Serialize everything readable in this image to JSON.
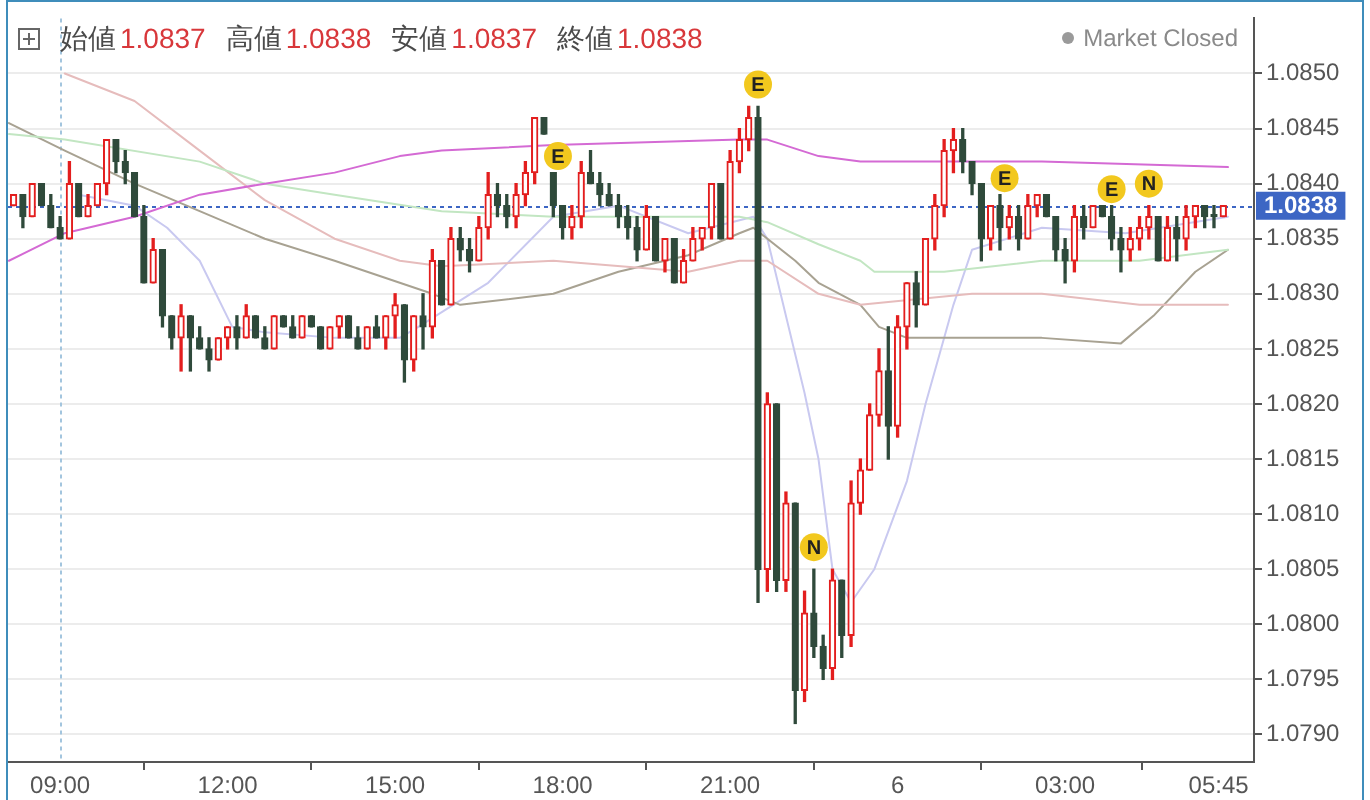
{
  "chart_data": {
    "type": "candlestick",
    "annotations": [
      "始値1.0837",
      "高値1.0838",
      "安値1.0837",
      "終値1.0838",
      "Market Closed",
      {
        "text": "E",
        "x": "--04-05T17:55",
        "y": 1.08425
      },
      {
        "text": "E",
        "x": "--04-05T21:30",
        "y": 1.0849
      },
      {
        "text": "N",
        "x": "--04-05T22:30",
        "y": 1.0807
      },
      {
        "text": "E",
        "x": "--04-06T01:55",
        "y": 1.08405
      },
      {
        "text": "E",
        "x": "--04-06T03:50",
        "y": 1.08395
      },
      {
        "text": "N",
        "x": "--04-06T04:30",
        "y": 1.084
      }
    ],
    "x": [
      "--04-05T08:10",
      "--04-05T08:20",
      "--04-05T08:30",
      "--04-05T08:40",
      "--04-05T08:50",
      "--04-05T09:00",
      "--04-05T09:10",
      "--04-05T09:20",
      "--04-05T09:30",
      "--04-05T09:40",
      "--04-05T09:50",
      "--04-05T10:00",
      "--04-05T10:10",
      "--04-05T10:20",
      "--04-05T10:30",
      "--04-05T10:40",
      "--04-05T10:50",
      "--04-05T11:00",
      "--04-05T11:10",
      "--04-05T11:20",
      "--04-05T11:30",
      "--04-05T11:40",
      "--04-05T11:50",
      "--04-05T12:00",
      "--04-05T12:10",
      "--04-05T12:20",
      "--04-05T12:30",
      "--04-05T12:40",
      "--04-05T12:50",
      "--04-05T13:00",
      "--04-05T13:10",
      "--04-05T13:20",
      "--04-05T13:30",
      "--04-05T13:40",
      "--04-05T13:50",
      "--04-05T14:00",
      "--04-05T14:10",
      "--04-05T14:20",
      "--04-05T14:30",
      "--04-05T14:40",
      "--04-05T14:50",
      "--04-05T15:00",
      "--04-05T15:10",
      "--04-05T15:20",
      "--04-05T15:30",
      "--04-05T15:40",
      "--04-05T15:50",
      "--04-05T16:00",
      "--04-05T16:10",
      "--04-05T16:20",
      "--04-05T16:30",
      "--04-05T16:40",
      "--04-05T16:50",
      "--04-05T17:00",
      "--04-05T17:10",
      "--04-05T17:20",
      "--04-05T17:30",
      "--04-05T17:40",
      "--04-05T17:50",
      "--04-05T18:00",
      "--04-05T18:10",
      "--04-05T18:20",
      "--04-05T18:30",
      "--04-05T18:40",
      "--04-05T18:50",
      "--04-05T19:00",
      "--04-05T19:10",
      "--04-05T19:20",
      "--04-05T19:30",
      "--04-05T19:40",
      "--04-05T19:50",
      "--04-05T20:00",
      "--04-05T20:10",
      "--04-05T20:20",
      "--04-05T20:30",
      "--04-05T20:40",
      "--04-05T20:50",
      "--04-05T21:00",
      "--04-05T21:10",
      "--04-05T21:20",
      "--04-05T21:30",
      "--04-05T21:40",
      "--04-05T21:50",
      "--04-05T22:00",
      "--04-05T22:10",
      "--04-05T22:20",
      "--04-05T22:30",
      "--04-05T22:40",
      "--04-05T22:50",
      "--04-05T23:00",
      "--04-05T23:10",
      "--04-05T23:20",
      "--04-05T23:30",
      "--04-05T23:40",
      "--04-05T23:50",
      "--04-06T00:00",
      "--04-06T00:10",
      "--04-06T00:20",
      "--04-06T00:30",
      "--04-06T00:40",
      "--04-06T00:50",
      "--04-06T01:00",
      "--04-06T01:10",
      "--04-06T01:20",
      "--04-06T01:30",
      "--04-06T01:40",
      "--04-06T01:50",
      "--04-06T02:00",
      "--04-06T02:10",
      "--04-06T02:20",
      "--04-06T02:30",
      "--04-06T02:40",
      "--04-06T02:50",
      "--04-06T03:00",
      "--04-06T03:10",
      "--04-06T03:20",
      "--04-06T03:30",
      "--04-06T03:40",
      "--04-06T03:50",
      "--04-06T04:00",
      "--04-06T04:10",
      "--04-06T04:20",
      "--04-06T04:30",
      "--04-06T04:40",
      "--04-06T04:50",
      "--04-06T05:00",
      "--04-06T05:10",
      "--04-06T05:20",
      "--04-06T05:30",
      "--04-06T05:40",
      "--04-06T05:50"
    ],
    "ohlc": [
      [
        1.0838,
        1.0839,
        1.0838,
        1.0839
      ],
      [
        1.0839,
        1.0839,
        1.0836,
        1.0837
      ],
      [
        1.0837,
        1.084,
        1.0837,
        1.084
      ],
      [
        1.084,
        1.084,
        1.0838,
        1.0838
      ],
      [
        1.0838,
        1.0839,
        1.0836,
        1.0836
      ],
      [
        1.0836,
        1.0837,
        1.0835,
        1.0835
      ],
      [
        1.0835,
        1.0842,
        1.0835,
        1.084
      ],
      [
        1.084,
        1.084,
        1.0837,
        1.0837
      ],
      [
        1.0837,
        1.0839,
        1.0837,
        1.0838
      ],
      [
        1.0838,
        1.084,
        1.0838,
        1.084
      ],
      [
        1.084,
        1.0844,
        1.0839,
        1.0844
      ],
      [
        1.0844,
        1.0844,
        1.0841,
        1.0842
      ],
      [
        1.0842,
        1.0843,
        1.084,
        1.0841
      ],
      [
        1.0841,
        1.0841,
        1.0837,
        1.0837
      ],
      [
        1.0837,
        1.0838,
        1.0831,
        1.0831
      ],
      [
        1.0831,
        1.0835,
        1.0831,
        1.0834
      ],
      [
        1.0834,
        1.0834,
        1.0827,
        1.0828
      ],
      [
        1.0828,
        1.0828,
        1.0825,
        1.0826
      ],
      [
        1.0826,
        1.0829,
        1.0823,
        1.0828
      ],
      [
        1.0828,
        1.0828,
        1.0823,
        1.0826
      ],
      [
        1.0826,
        1.0827,
        1.0825,
        1.0825
      ],
      [
        1.0825,
        1.0826,
        1.0823,
        1.0824
      ],
      [
        1.0824,
        1.0826,
        1.0824,
        1.0826
      ],
      [
        1.0826,
        1.0827,
        1.0825,
        1.0827
      ],
      [
        1.0827,
        1.0828,
        1.0825,
        1.0826
      ],
      [
        1.0826,
        1.0829,
        1.0826,
        1.0828
      ],
      [
        1.0828,
        1.0828,
        1.0826,
        1.0826
      ],
      [
        1.0826,
        1.0827,
        1.0825,
        1.0825
      ],
      [
        1.0825,
        1.0828,
        1.0825,
        1.0828
      ],
      [
        1.0828,
        1.0828,
        1.0827,
        1.0827
      ],
      [
        1.0827,
        1.0828,
        1.0826,
        1.0826
      ],
      [
        1.0826,
        1.0828,
        1.0826,
        1.0828
      ],
      [
        1.0828,
        1.0828,
        1.0827,
        1.0827
      ],
      [
        1.0827,
        1.0827,
        1.0825,
        1.0825
      ],
      [
        1.0825,
        1.0827,
        1.0825,
        1.0827
      ],
      [
        1.0827,
        1.0828,
        1.0826,
        1.0828
      ],
      [
        1.0828,
        1.0828,
        1.0826,
        1.0826
      ],
      [
        1.0826,
        1.0827,
        1.0825,
        1.0825
      ],
      [
        1.0825,
        1.0827,
        1.0825,
        1.0827
      ],
      [
        1.0827,
        1.0828,
        1.0826,
        1.0826
      ],
      [
        1.0826,
        1.0828,
        1.0825,
        1.0828
      ],
      [
        1.0828,
        1.083,
        1.0826,
        1.0829
      ],
      [
        1.0829,
        1.0829,
        1.0822,
        1.0824
      ],
      [
        1.0824,
        1.0828,
        1.0823,
        1.0828
      ],
      [
        1.0828,
        1.083,
        1.0825,
        1.0827
      ],
      [
        1.0827,
        1.0834,
        1.0826,
        1.0833
      ],
      [
        1.0833,
        1.0833,
        1.0829,
        1.0829
      ],
      [
        1.0829,
        1.0836,
        1.0829,
        1.0835
      ],
      [
        1.0835,
        1.0836,
        1.0833,
        1.0834
      ],
      [
        1.0834,
        1.0835,
        1.0832,
        1.0833
      ],
      [
        1.0833,
        1.0837,
        1.0833,
        1.0836
      ],
      [
        1.0836,
        1.0841,
        1.0835,
        1.0839
      ],
      [
        1.0839,
        1.084,
        1.0837,
        1.0838
      ],
      [
        1.0838,
        1.0839,
        1.0836,
        1.0837
      ],
      [
        1.0837,
        1.084,
        1.0836,
        1.0839
      ],
      [
        1.0839,
        1.0842,
        1.0838,
        1.0841
      ],
      [
        1.0841,
        1.0846,
        1.084,
        1.0846
      ],
      [
        1.0846,
        1.0846,
        1.08445,
        1.08445
      ],
      [
        1.0841,
        1.0841,
        1.0837,
        1.0838
      ],
      [
        1.0838,
        1.0838,
        1.0835,
        1.0836
      ],
      [
        1.0836,
        1.0838,
        1.0835,
        1.0837
      ],
      [
        1.0837,
        1.0842,
        1.0836,
        1.0841
      ],
      [
        1.0841,
        1.0843,
        1.084,
        1.084
      ],
      [
        1.084,
        1.0841,
        1.0838,
        1.0839
      ],
      [
        1.0839,
        1.084,
        1.0838,
        1.0838
      ],
      [
        1.0838,
        1.0839,
        1.0836,
        1.0837
      ],
      [
        1.0837,
        1.0838,
        1.0835,
        1.0836
      ],
      [
        1.0836,
        1.0837,
        1.0833,
        1.0834
      ],
      [
        1.0834,
        1.0838,
        1.0834,
        1.0837
      ],
      [
        1.0837,
        1.0837,
        1.0833,
        1.0833
      ],
      [
        1.0833,
        1.0835,
        1.0832,
        1.0835
      ],
      [
        1.0835,
        1.0835,
        1.0831,
        1.0831
      ],
      [
        1.0831,
        1.0834,
        1.0831,
        1.0833
      ],
      [
        1.0833,
        1.0836,
        1.0833,
        1.0835
      ],
      [
        1.0835,
        1.0836,
        1.0834,
        1.0836
      ],
      [
        1.0836,
        1.084,
        1.0835,
        1.084
      ],
      [
        1.084,
        1.084,
        1.0835,
        1.0835
      ],
      [
        1.0835,
        1.0843,
        1.0835,
        1.0842
      ],
      [
        1.0842,
        1.0845,
        1.0841,
        1.0844
      ],
      [
        1.0844,
        1.0847,
        1.0843,
        1.0846
      ],
      [
        1.0846,
        1.0847,
        1.0802,
        1.0805
      ],
      [
        1.0805,
        1.0821,
        1.0803,
        1.082
      ],
      [
        1.082,
        1.082,
        1.0803,
        1.0804
      ],
      [
        1.0804,
        1.0812,
        1.0803,
        1.0811
      ],
      [
        1.0811,
        1.0811,
        1.0791,
        1.0794
      ],
      [
        1.0794,
        1.0803,
        1.0793,
        1.0801
      ],
      [
        1.0801,
        1.0805,
        1.0797,
        1.0798
      ],
      [
        1.0798,
        1.0799,
        1.0795,
        1.0796
      ],
      [
        1.0796,
        1.0805,
        1.0795,
        1.0804
      ],
      [
        1.0804,
        1.0804,
        1.0797,
        1.0799
      ],
      [
        1.0799,
        1.0813,
        1.0798,
        1.0811
      ],
      [
        1.0811,
        1.0815,
        1.081,
        1.0814
      ],
      [
        1.0814,
        1.082,
        1.0814,
        1.0819
      ],
      [
        1.0819,
        1.0825,
        1.0818,
        1.0823
      ],
      [
        1.0823,
        1.0827,
        1.0815,
        1.0818
      ],
      [
        1.0818,
        1.0828,
        1.0817,
        1.0827
      ],
      [
        1.0827,
        1.0831,
        1.0825,
        1.0831
      ],
      [
        1.0831,
        1.0832,
        1.0827,
        1.0829
      ],
      [
        1.0829,
        1.0835,
        1.0829,
        1.0835
      ],
      [
        1.0835,
        1.0839,
        1.0834,
        1.0838
      ],
      [
        1.0838,
        1.0844,
        1.0837,
        1.0843
      ],
      [
        1.0843,
        1.0845,
        1.0841,
        1.0844
      ],
      [
        1.0844,
        1.0845,
        1.0841,
        1.0842
      ],
      [
        1.0842,
        1.0842,
        1.0839,
        1.084
      ],
      [
        1.084,
        1.084,
        1.0833,
        1.0835
      ],
      [
        1.0835,
        1.0838,
        1.0834,
        1.0838
      ],
      [
        1.0838,
        1.0839,
        1.0834,
        1.0836
      ],
      [
        1.0836,
        1.0838,
        1.0835,
        1.0837
      ],
      [
        1.0837,
        1.0838,
        1.0834,
        1.0835
      ],
      [
        1.0835,
        1.0839,
        1.0835,
        1.0838
      ],
      [
        1.0838,
        1.0839,
        1.0837,
        1.0839
      ],
      [
        1.0839,
        1.0839,
        1.0837,
        1.0837
      ],
      [
        1.0837,
        1.0837,
        1.0833,
        1.0834
      ],
      [
        1.0834,
        1.0835,
        1.0831,
        1.0833
      ],
      [
        1.0833,
        1.0838,
        1.0832,
        1.0837
      ],
      [
        1.0837,
        1.0838,
        1.0835,
        1.0836
      ],
      [
        1.0836,
        1.0838,
        1.0836,
        1.0838
      ],
      [
        1.0838,
        1.0838,
        1.0837,
        1.0837
      ],
      [
        1.0837,
        1.0838,
        1.0834,
        1.0835
      ],
      [
        1.0835,
        1.0836,
        1.0832,
        1.0834
      ],
      [
        1.0834,
        1.0836,
        1.0833,
        1.0835
      ],
      [
        1.0835,
        1.0837,
        1.0834,
        1.0836
      ],
      [
        1.0836,
        1.0838,
        1.0835,
        1.0837
      ],
      [
        1.0837,
        1.0837,
        1.0833,
        1.0833
      ],
      [
        1.0833,
        1.0837,
        1.0833,
        1.0836
      ],
      [
        1.0836,
        1.0837,
        1.0833,
        1.0835
      ],
      [
        1.0835,
        1.0838,
        1.0834,
        1.0837
      ],
      [
        1.0837,
        1.0838,
        1.0836,
        1.0838
      ],
      [
        1.0838,
        1.0838,
        1.0836,
        1.0837
      ],
      [
        1.0837,
        1.0838,
        1.0836,
        1.0837
      ],
      [
        1.0837,
        1.0838,
        1.0837,
        1.0838
      ]
    ],
    "colors": [
      "#e31e1e",
      "#2f4a3b",
      "#e31e1e",
      "#2f4a3b",
      "#2f4a3b",
      "#2f4a3b",
      "#e31e1e",
      "#2f4a3b",
      "#e31e1e",
      "#e31e1e",
      "#e31e1e",
      "#2f4a3b",
      "#2f4a3b",
      "#2f4a3b",
      "#2f4a3b",
      "#e31e1e",
      "#2f4a3b",
      "#2f4a3b",
      "#e31e1e",
      "#2f4a3b",
      "#2f4a3b",
      "#2f4a3b",
      "#e31e1e",
      "#e31e1e",
      "#2f4a3b",
      "#e31e1e",
      "#2f4a3b",
      "#2f4a3b",
      "#e31e1e",
      "#2f4a3b",
      "#2f4a3b",
      "#e31e1e",
      "#2f4a3b",
      "#2f4a3b",
      "#e31e1e",
      "#e31e1e",
      "#2f4a3b",
      "#2f4a3b",
      "#e31e1e",
      "#2f4a3b",
      "#e31e1e",
      "#e31e1e",
      "#2f4a3b",
      "#e31e1e",
      "#2f4a3b",
      "#e31e1e",
      "#2f4a3b",
      "#e31e1e",
      "#2f4a3b",
      "#2f4a3b",
      "#e31e1e",
      "#e31e1e",
      "#2f4a3b",
      "#2f4a3b",
      "#e31e1e",
      "#e31e1e",
      "#e31e1e",
      "#2f4a3b",
      "#2f4a3b",
      "#2f4a3b",
      "#e31e1e",
      "#e31e1e",
      "#2f4a3b",
      "#2f4a3b",
      "#2f4a3b",
      "#2f4a3b",
      "#2f4a3b",
      "#2f4a3b",
      "#e31e1e",
      "#2f4a3b",
      "#e31e1e",
      "#2f4a3b",
      "#e31e1e",
      "#e31e1e",
      "#e31e1e",
      "#e31e1e",
      "#2f4a3b",
      "#e31e1e",
      "#e31e1e",
      "#e31e1e",
      "#2f4a3b",
      "#e31e1e",
      "#2f4a3b",
      "#e31e1e",
      "#2f4a3b",
      "#e31e1e",
      "#2f4a3b",
      "#2f4a3b",
      "#e31e1e",
      "#2f4a3b",
      "#e31e1e",
      "#e31e1e",
      "#e31e1e",
      "#e31e1e",
      "#2f4a3b",
      "#e31e1e",
      "#e31e1e",
      "#2f4a3b",
      "#e31e1e",
      "#e31e1e",
      "#e31e1e",
      "#e31e1e",
      "#2f4a3b",
      "#2f4a3b",
      "#2f4a3b",
      "#e31e1e",
      "#2f4a3b",
      "#e31e1e",
      "#2f4a3b",
      "#e31e1e",
      "#e31e1e",
      "#2f4a3b",
      "#2f4a3b",
      "#2f4a3b",
      "#e31e1e",
      "#2f4a3b",
      "#e31e1e",
      "#2f4a3b",
      "#2f4a3b",
      "#2f4a3b",
      "#e31e1e",
      "#e31e1e",
      "#e31e1e",
      "#2f4a3b",
      "#e31e1e",
      "#2f4a3b",
      "#e31e1e",
      "#e31e1e",
      "#2f4a3b",
      "#2f4a3b",
      "#e31e1e"
    ],
    "series": [
      {
        "type": "line",
        "color": "#d46ad4",
        "x": [
          "--04-05T08:05",
          "--04-05T09:05",
          "--04-05T10:20",
          "--04-05T11:30",
          "--04-05T12:40",
          "--04-05T13:55",
          "--04-05T15:05",
          "--04-05T15:50",
          "--04-05T17:50",
          "--04-05T21:10",
          "--04-05T21:40",
          "--04-05T22:35",
          "--04-05T23:20",
          "--04-06T02:35",
          "--04-06T05:55"
        ],
        "values": [
          1.0833,
          1.08355,
          1.0837,
          1.0839,
          1.084,
          1.0841,
          1.08425,
          1.0843,
          1.08435,
          1.0844,
          1.0844,
          1.08425,
          1.0842,
          1.0842,
          1.08415
        ]
      },
      {
        "type": "line",
        "color": "#c2e6c2",
        "x": [
          "--04-05T08:05",
          "--04-05T09:05",
          "--04-05T11:30",
          "--04-05T12:40",
          "--04-05T13:55",
          "--04-05T15:50",
          "--04-05T17:50",
          "--04-05T21:10",
          "--04-05T21:40",
          "--04-05T22:35",
          "--04-05T23:20",
          "--04-05T23:35",
          "--04-06T00:50",
          "--04-06T02:35",
          "--04-06T04:20",
          "--04-06T05:55"
        ],
        "values": [
          1.08445,
          1.0844,
          1.0842,
          1.084,
          1.0839,
          1.08375,
          1.0837,
          1.0837,
          1.08365,
          1.08345,
          1.0833,
          1.0832,
          1.0832,
          1.0833,
          1.0833,
          1.0834
        ]
      },
      {
        "type": "line",
        "color": "#e6bcbc",
        "x": [
          "--04-05T09:05",
          "--04-05T10:20",
          "--04-05T11:30",
          "--04-05T12:40",
          "--04-05T13:55",
          "--04-05T15:05",
          "--04-05T15:50",
          "--04-05T17:50",
          "--04-05T20:15",
          "--04-05T21:10",
          "--04-05T21:40",
          "--04-05T22:35",
          "--04-05T23:20",
          "--04-06T01:20",
          "--04-06T02:35",
          "--04-06T04:20",
          "--04-06T05:55"
        ],
        "values": [
          1.085,
          1.08475,
          1.0843,
          1.08385,
          1.0835,
          1.0833,
          1.08325,
          1.0833,
          1.0832,
          1.0833,
          1.0833,
          1.083,
          1.0829,
          1.083,
          1.083,
          1.0829,
          1.0829
        ]
      },
      {
        "type": "line",
        "color": "#a8a292",
        "x": [
          "--04-05T08:05",
          "--04-05T09:05",
          "--04-05T10:20",
          "--04-05T11:30",
          "--04-05T12:40",
          "--04-05T13:55",
          "--04-05T15:05",
          "--04-05T15:40",
          "--04-05T16:10",
          "--04-05T17:50",
          "--04-05T19:00",
          "--04-05T20:15",
          "--04-05T21:10",
          "--04-05T21:25",
          "--04-05T22:10",
          "--04-05T22:35",
          "--04-05T23:20",
          "--04-05T23:40",
          "--04-06T00:10",
          "--04-06T02:35",
          "--04-06T04:00",
          "--04-06T04:35",
          "--04-06T05:20",
          "--04-06T05:55"
        ],
        "values": [
          1.08455,
          1.0843,
          1.084,
          1.08375,
          1.0835,
          1.0833,
          1.0831,
          1.083,
          1.0829,
          1.083,
          1.0832,
          1.08335,
          1.08355,
          1.0836,
          1.0833,
          1.0831,
          1.0829,
          1.0827,
          1.0826,
          1.0826,
          1.08255,
          1.0828,
          1.0832,
          1.0834
        ]
      },
      {
        "type": "line",
        "color": "#c9c9f0",
        "x": [
          "--04-05T09:20",
          "--04-05T10:20",
          "--04-05T10:55",
          "--04-05T11:30",
          "--04-05T12:05",
          "--04-05T12:40",
          "--04-05T13:55",
          "--04-05T15:05",
          "--04-05T15:25",
          "--04-05T16:40",
          "--04-05T17:50",
          "--04-05T19:00",
          "--04-05T20:15",
          "--04-05T21:25",
          "--04-05T21:40",
          "--04-05T22:20",
          "--04-05T22:35",
          "--04-05T22:50",
          "--04-05T23:10",
          "--04-05T23:35",
          "--04-06T00:10",
          "--04-06T00:30",
          "--04-06T00:40",
          "--04-06T01:00",
          "--04-06T01:20",
          "--04-06T02:35",
          "--04-06T04:05",
          "--04-06T05:55"
        ],
        "values": [
          1.0839,
          1.0838,
          1.0836,
          1.0833,
          1.0827,
          1.08265,
          1.0826,
          1.0826,
          1.0827,
          1.0831,
          1.0837,
          1.0838,
          1.08355,
          1.0837,
          1.0835,
          1.0821,
          1.0815,
          1.0805,
          1.0802,
          1.0805,
          1.0813,
          1.082,
          1.0823,
          1.0829,
          1.0834,
          1.0836,
          1.08355,
          1.0837
        ]
      }
    ],
    "xlim": [
      "--04-05T08:04",
      "--04-06T06:23"
    ],
    "xticks": [
      {
        "value": "--04-05T09:00",
        "label": "09:00"
      },
      {
        "value": "--04-05T12:00",
        "label": "12:00"
      },
      {
        "value": "--04-05T15:00",
        "label": "15:00"
      },
      {
        "value": "--04-05T18:00",
        "label": "18:00"
      },
      {
        "value": "--04-05T21:00",
        "label": "21:00"
      },
      {
        "value": "--04-06",
        "label": "6"
      },
      {
        "value": "--04-06T03:00",
        "label": "03:00"
      },
      {
        "value": "--04-06T05:45",
        "label": "05:45"
      }
    ],
    "ylim": [
      1.07875,
      1.0855
    ],
    "yticks": [
      {
        "value": 1.079,
        "label": "1.0790"
      },
      1.0795,
      {
        "value": 1.08,
        "label": "1.0800"
      },
      1.0805,
      {
        "value": 1.081,
        "label": "1.0810"
      },
      1.0815,
      {
        "value": 1.082,
        "label": "1.0820"
      },
      1.0825,
      {
        "value": 1.083,
        "label": "1.0830"
      },
      1.0835,
      {
        "value": 1.084,
        "label": "1.0840"
      },
      1.0845,
      {
        "value": 1.085,
        "label": "1.0850"
      }
    ],
    "ref_lines": [
      {
        "axis": "y",
        "value": 1.0838,
        "label": "1.0838",
        "color": "#3d66c4",
        "line_style": "dotted"
      },
      {
        "axis": "x",
        "value": "--04-05T09:00",
        "color": "#a3c5de",
        "line_style": "dotted"
      }
    ],
    "grid": "y",
    "legend": false,
    "marker": "none"
  }
}
